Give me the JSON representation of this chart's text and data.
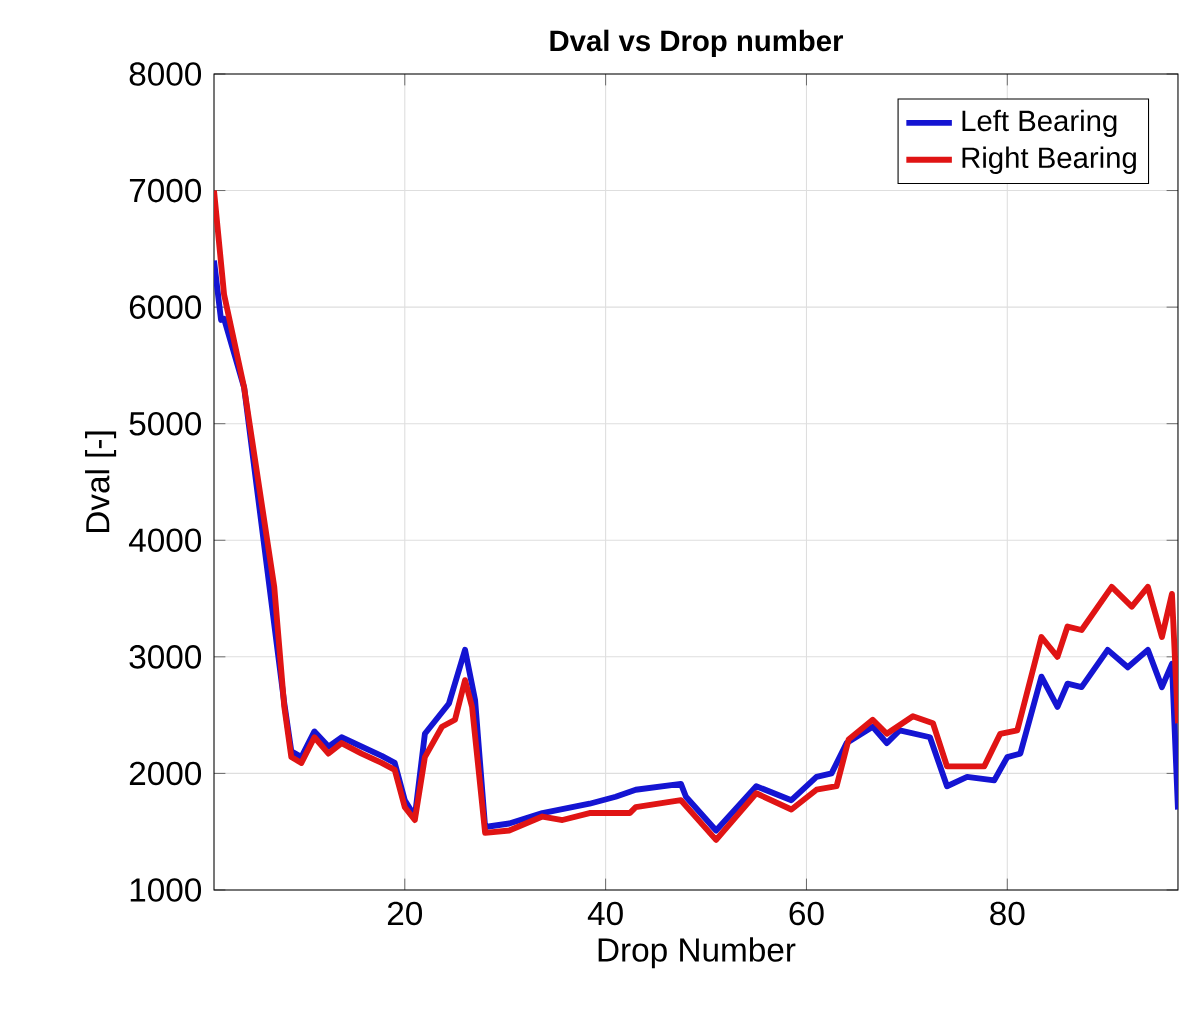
{
  "chart_data": {
    "type": "line",
    "title": "Dval vs Drop number",
    "xlabel": "Drop Number",
    "ylabel": "Dval [-]",
    "xlim": [
      1,
      97
    ],
    "ylim": [
      1000,
      8000
    ],
    "xticks": [
      20,
      40,
      60,
      80
    ],
    "yticks": [
      1000,
      2000,
      3000,
      4000,
      5000,
      6000,
      7000,
      8000
    ],
    "grid": true,
    "legend": "top right",
    "marker": "none",
    "line_style": "solid",
    "series": [
      {
        "name": "Left Bearing",
        "color": "#1414d2",
        "x": [
          1,
          1.7,
          2,
          4,
          5,
          6,
          7,
          8,
          8.7,
          9.7,
          11,
          12.4,
          13.7,
          15.7,
          17.7,
          19,
          20,
          21,
          22,
          24.4,
          26,
          27,
          28,
          30.4,
          33.7,
          38.4,
          41,
          43,
          47.5,
          48,
          51,
          55,
          58.5,
          61,
          62.5,
          64,
          66.6,
          68,
          69.3,
          72.3,
          74,
          76,
          78.7,
          80,
          81.3,
          83.4,
          85,
          86,
          87.4,
          90,
          92,
          94,
          95.4,
          96.4,
          97
        ],
        "values": [
          6400,
          5890,
          5900,
          5310,
          null,
          null,
          null,
          2600,
          2190,
          2140,
          2360,
          2230,
          2310,
          2230,
          2150,
          2090,
          1770,
          1630,
          2340,
          2600,
          3060,
          2630,
          1540,
          1570,
          1660,
          1740,
          1800,
          1860,
          1910,
          1800,
          1510,
          1890,
          1770,
          1970,
          2000,
          2260,
          2400,
          2260,
          2370,
          2310,
          1890,
          1970,
          1940,
          2140,
          2170,
          2830,
          2570,
          2770,
          2740,
          3060,
          2910,
          3060,
          2740,
          2940,
          1690
        ]
      },
      {
        "name": "Right Bearing",
        "color": "#e01414",
        "x": [
          1,
          2,
          4,
          5,
          6,
          7,
          8,
          8.7,
          9.7,
          11,
          12.4,
          13.7,
          15.7,
          17.7,
          19,
          20,
          21,
          22,
          23.7,
          25,
          26,
          26.7,
          28,
          30.4,
          33.7,
          35.7,
          38.4,
          42.4,
          43,
          47.5,
          51,
          55,
          58.5,
          61,
          63,
          64.2,
          66.6,
          68,
          70.6,
          72.6,
          74,
          77.7,
          79.3,
          81,
          83.4,
          85,
          86,
          87.4,
          90.4,
          92.4,
          94,
          95.4,
          96.4,
          97
        ],
        "values": [
          7000,
          6110,
          5310,
          4740,
          4170,
          3600,
          2570,
          2140,
          2090,
          2310,
          2170,
          2260,
          2170,
          2090,
          2030,
          1710,
          1600,
          2140,
          2400,
          2460,
          2800,
          2570,
          1490,
          1510,
          1630,
          1600,
          1660,
          1660,
          1710,
          1770,
          1430,
          1830,
          1690,
          1860,
          1890,
          2290,
          2460,
          2340,
          2490,
          2430,
          2060,
          2060,
          2340,
          2370,
          3170,
          3000,
          3260,
          3230,
          3600,
          3430,
          3600,
          3170,
          3540,
          2430
        ]
      }
    ]
  }
}
